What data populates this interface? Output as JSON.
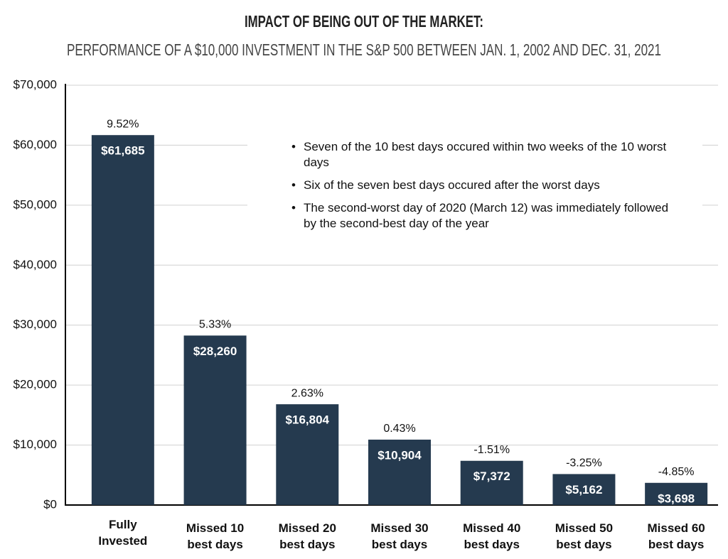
{
  "chart_data": {
    "type": "bar",
    "title": "IMPACT OF BEING OUT OF THE MARKET:",
    "subtitle": "PERFORMANCE OF A $10,000 INVESTMENT IN THE S&P 500 BETWEEN JAN. 1, 2002 AND DEC. 31, 2021",
    "categories": [
      "Fully Invested",
      "Missed 10 best days",
      "Missed 20 best days",
      "Missed 30 best days",
      "Missed 40 best days",
      "Missed 50 best days",
      "Missed 60 best days"
    ],
    "values": [
      61685,
      28260,
      16804,
      10904,
      7372,
      5162,
      3698
    ],
    "value_labels": [
      "$61,685",
      "$28,260",
      "$16,804",
      "$10,904",
      "$7,372",
      "$5,162",
      "$3,698"
    ],
    "return_labels": [
      "9.52%",
      "5.33%",
      "2.63%",
      "0.43%",
      "-1.51%",
      "-3.25%",
      "-4.85%"
    ],
    "color": "#253a4f",
    "ylim": [
      0,
      70000
    ],
    "yticks": [
      {
        "value": 0,
        "label": "$0"
      },
      {
        "value": 10000,
        "label": "$10,000"
      },
      {
        "value": 20000,
        "label": "$20,000"
      },
      {
        "value": 30000,
        "label": "$30,000"
      },
      {
        "value": 40000,
        "label": "$40,000"
      },
      {
        "value": 50000,
        "label": "$50,000"
      },
      {
        "value": 60000,
        "label": "$60,000"
      },
      {
        "value": 70000,
        "label": "$70,000"
      }
    ],
    "grid": true,
    "annotations": [
      "Seven of the 10 best days occured within two weeks of the 10 worst days",
      "Six of the seven best days occured after the worst days",
      "The second-worst day of 2020 (March 12) was immediately followed by the second-best day of the year"
    ]
  }
}
